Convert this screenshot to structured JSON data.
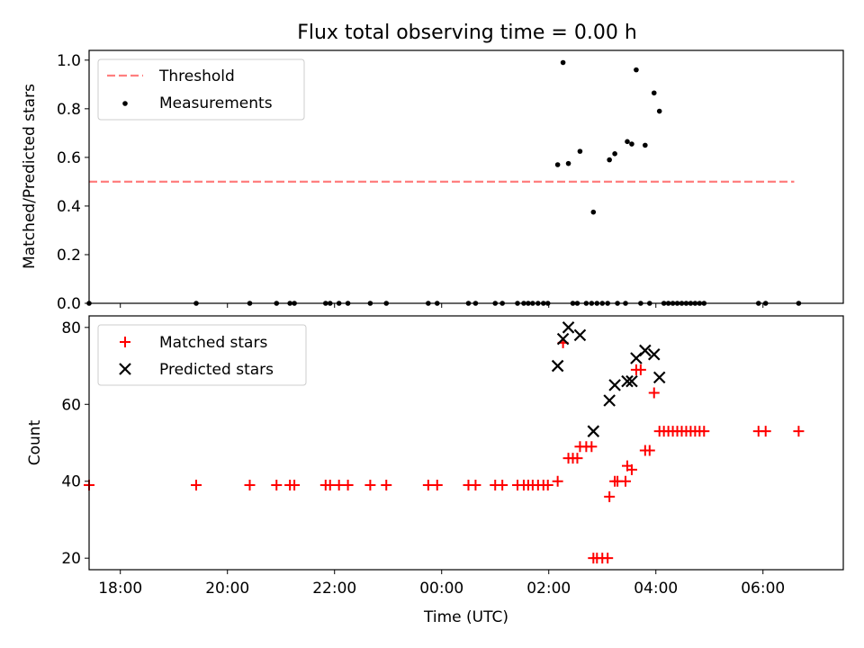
{
  "title": "Flux total observing time = 0.00 h",
  "chart_data": [
    {
      "type": "scatter",
      "ylabel": "Matched/Predicted stars",
      "xlim": [
        "17:25",
        "07:30"
      ],
      "ylim": [
        0,
        1.04
      ],
      "yticks": [
        "0.0",
        "0.2",
        "0.4",
        "0.6",
        "0.8",
        "1.0"
      ],
      "legend_position": "upper-left",
      "threshold": {
        "name": "Threshold",
        "value": 0.5,
        "x_start": "17:25",
        "x_end": "06:35",
        "color": "#ff7f7f"
      },
      "series": [
        {
          "name": "Measurements",
          "color": "#000000",
          "points": [
            [
              "17:25",
              0
            ],
            [
              "19:25",
              0
            ],
            [
              "20:25",
              0
            ],
            [
              "20:55",
              0
            ],
            [
              "21:10",
              0
            ],
            [
              "21:15",
              0
            ],
            [
              "21:50",
              0
            ],
            [
              "21:55",
              0
            ],
            [
              "22:05",
              0
            ],
            [
              "22:15",
              0
            ],
            [
              "22:40",
              0
            ],
            [
              "22:58",
              0
            ],
            [
              "23:45",
              0
            ],
            [
              "23:55",
              0
            ],
            [
              "00:30",
              0
            ],
            [
              "00:38",
              0
            ],
            [
              "01:00",
              0
            ],
            [
              "01:08",
              0
            ],
            [
              "01:25",
              0
            ],
            [
              "01:32",
              0
            ],
            [
              "01:37",
              0
            ],
            [
              "01:42",
              0
            ],
            [
              "01:48",
              0
            ],
            [
              "01:54",
              0
            ],
            [
              "01:59",
              0
            ],
            [
              "02:10",
              0.57
            ],
            [
              "02:16",
              0.99
            ],
            [
              "02:22",
              0.575
            ],
            [
              "02:27",
              0
            ],
            [
              "02:32",
              0
            ],
            [
              "02:35",
              0.625
            ],
            [
              "02:42",
              0
            ],
            [
              "02:48",
              0
            ],
            [
              "02:50",
              0.375
            ],
            [
              "02:54",
              0
            ],
            [
              "03:00",
              0
            ],
            [
              "03:06",
              0
            ],
            [
              "03:08",
              0.59
            ],
            [
              "03:14",
              0.615
            ],
            [
              "03:17",
              0
            ],
            [
              "03:26",
              0
            ],
            [
              "03:28",
              0.665
            ],
            [
              "03:33",
              0.655
            ],
            [
              "03:38",
              0.96
            ],
            [
              "03:43",
              0
            ],
            [
              "03:48",
              0.65
            ],
            [
              "03:53",
              0
            ],
            [
              "03:58",
              0.865
            ],
            [
              "04:04",
              0.79
            ],
            [
              "04:09",
              0
            ],
            [
              "04:14",
              0
            ],
            [
              "04:19",
              0
            ],
            [
              "04:24",
              0
            ],
            [
              "04:29",
              0
            ],
            [
              "04:34",
              0
            ],
            [
              "04:39",
              0
            ],
            [
              "04:44",
              0
            ],
            [
              "04:49",
              0
            ],
            [
              "04:54",
              0
            ],
            [
              "05:55",
              0
            ],
            [
              "06:03",
              0
            ],
            [
              "06:40",
              0
            ]
          ]
        }
      ]
    },
    {
      "type": "scatter",
      "xlabel": "Time (UTC)",
      "ylabel": "Count",
      "xlim": [
        "17:25",
        "07:30"
      ],
      "ylim": [
        17,
        83
      ],
      "yticks": [
        "20",
        "40",
        "60",
        "80"
      ],
      "xticks": [
        "18:00",
        "20:00",
        "22:00",
        "00:00",
        "02:00",
        "04:00",
        "06:00"
      ],
      "legend_position": "upper-left",
      "series": [
        {
          "name": "Matched stars",
          "marker": "plus",
          "color": "#ff0000",
          "points": [
            [
              "17:25",
              39
            ],
            [
              "19:25",
              39
            ],
            [
              "20:25",
              39
            ],
            [
              "20:55",
              39
            ],
            [
              "21:10",
              39
            ],
            [
              "21:15",
              39
            ],
            [
              "21:50",
              39
            ],
            [
              "21:55",
              39
            ],
            [
              "22:05",
              39
            ],
            [
              "22:15",
              39
            ],
            [
              "22:40",
              39
            ],
            [
              "22:58",
              39
            ],
            [
              "23:45",
              39
            ],
            [
              "23:55",
              39
            ],
            [
              "00:30",
              39
            ],
            [
              "00:38",
              39
            ],
            [
              "01:00",
              39
            ],
            [
              "01:08",
              39
            ],
            [
              "01:25",
              39
            ],
            [
              "01:32",
              39
            ],
            [
              "01:37",
              39
            ],
            [
              "01:42",
              39
            ],
            [
              "01:48",
              39
            ],
            [
              "01:54",
              39
            ],
            [
              "01:59",
              39
            ],
            [
              "02:10",
              40
            ],
            [
              "02:16",
              76
            ],
            [
              "02:22",
              46
            ],
            [
              "02:27",
              46
            ],
            [
              "02:32",
              46
            ],
            [
              "02:35",
              49
            ],
            [
              "02:42",
              49
            ],
            [
              "02:48",
              49
            ],
            [
              "02:50",
              20
            ],
            [
              "02:54",
              20
            ],
            [
              "03:00",
              20
            ],
            [
              "03:06",
              20
            ],
            [
              "03:08",
              36
            ],
            [
              "03:14",
              40
            ],
            [
              "03:17",
              40
            ],
            [
              "03:26",
              40
            ],
            [
              "03:28",
              44
            ],
            [
              "03:33",
              43
            ],
            [
              "03:38",
              69
            ],
            [
              "03:43",
              69
            ],
            [
              "03:48",
              48
            ],
            [
              "03:53",
              48
            ],
            [
              "03:58",
              63
            ],
            [
              "04:04",
              53
            ],
            [
              "04:09",
              53
            ],
            [
              "04:14",
              53
            ],
            [
              "04:19",
              53
            ],
            [
              "04:24",
              53
            ],
            [
              "04:29",
              53
            ],
            [
              "04:34",
              53
            ],
            [
              "04:39",
              53
            ],
            [
              "04:44",
              53
            ],
            [
              "04:49",
              53
            ],
            [
              "04:54",
              53
            ],
            [
              "05:55",
              53
            ],
            [
              "06:03",
              53
            ],
            [
              "06:40",
              53
            ]
          ]
        },
        {
          "name": "Predicted stars",
          "marker": "x",
          "color": "#000000",
          "points": [
            [
              "02:10",
              70
            ],
            [
              "02:16",
              77
            ],
            [
              "02:22",
              80
            ],
            [
              "02:35",
              78
            ],
            [
              "02:50",
              53
            ],
            [
              "03:08",
              61
            ],
            [
              "03:14",
              65
            ],
            [
              "03:28",
              66
            ],
            [
              "03:33",
              66
            ],
            [
              "03:38",
              72
            ],
            [
              "03:48",
              74
            ],
            [
              "03:58",
              73
            ],
            [
              "04:04",
              67
            ]
          ]
        }
      ]
    }
  ]
}
